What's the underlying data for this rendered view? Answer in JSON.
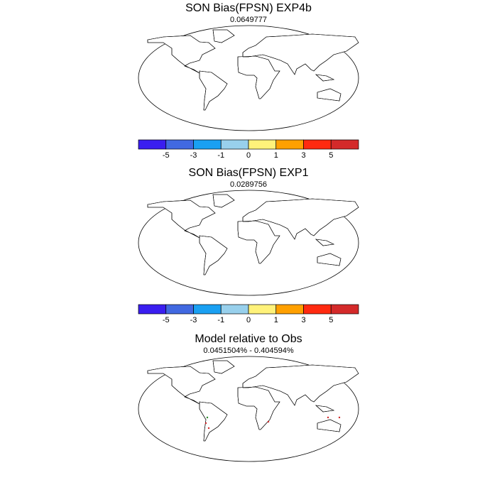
{
  "panels": [
    {
      "title": "SON Bias(FPSN) EXP4b",
      "subtitle": "0.0649777",
      "colorbar": {
        "levels": [
          -5,
          -3,
          -1,
          0,
          1,
          3,
          5
        ],
        "colors": [
          "#3a1ef0",
          "#4169e1",
          "#1aa0f2",
          "#98d0ec",
          "#fff27a",
          "#ffa000",
          "#ff2a10",
          "#d42a2a"
        ]
      }
    },
    {
      "title": "SON Bias(FPSN) EXP1",
      "subtitle": "0.0289756",
      "colorbar": {
        "levels": [
          -5,
          -3,
          -1,
          0,
          1,
          3,
          5
        ],
        "colors": [
          "#3a1ef0",
          "#4169e1",
          "#1aa0f2",
          "#98d0ec",
          "#fff27a",
          "#ffa000",
          "#ff2a10",
          "#d42a2a"
        ]
      }
    },
    {
      "title": "Model relative to Obs",
      "subtitle": "0.0451504% - 0.404594%"
    }
  ]
}
